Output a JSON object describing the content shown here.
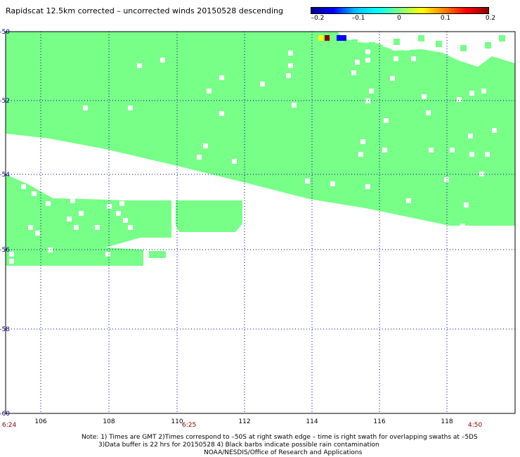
{
  "title": "Rapidscat 12.5km corrected – uncorrected winds 20150528 descending",
  "colorbar": {
    "labels": [
      "–0.2",
      "–0.1",
      "0",
      "0.1",
      "0.2"
    ],
    "colors": [
      "#00008b",
      "#0000ff",
      "#00bfff",
      "#00ffff",
      "#7fff7f",
      "#ffff00",
      "#ff8000",
      "#ff0000",
      "#8b0000"
    ]
  },
  "map": {
    "lat_labels": [
      "–50",
      "–52",
      "–54",
      "–56",
      "–58",
      "–60"
    ],
    "lon_labels": [
      "106",
      "108",
      "110",
      "112",
      "114",
      "116",
      "118"
    ],
    "fill_color": "#77ff88"
  },
  "times": {
    "left": "6:24",
    "center": "6:25",
    "right": "4:50"
  },
  "notes": {
    "line1": "Note: 1) Times are GMT 2)Times correspond to –50S at right swath edge – time is right swath for overlapping swaths at –5DS",
    "line2": "3)Data buffer is 22 hrs for 20150528 4) Black barbs indicate possible rain contamination",
    "line3": "NOAA/NESDIS/Office of Research and Applications"
  }
}
